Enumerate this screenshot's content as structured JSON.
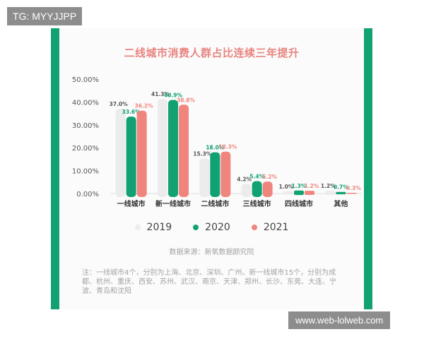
{
  "watermark_top": "TG: MYYJJPP",
  "watermark_bottom": "www.web-lolweb.com",
  "source": "数据来源：新氧数据颜究院",
  "note": "注：一线城市4个，分别为上海、北京、深圳、广州。新一线城市15个，分别为成都、杭州、重庆、西安、苏州、武汉、南京、天津、郑州、长沙、东莞、大连、宁波、青岛和沈阳",
  "colors": {
    "accent": "#11a173",
    "title": "#e8847f"
  },
  "chart_data": {
    "type": "bar",
    "title": "二线城市消费人群占比连续三年提升",
    "categories": [
      "一线城市",
      "新一线城市",
      "二线城市",
      "三线城市",
      "四线城市",
      "其他"
    ],
    "series": [
      {
        "name": "2019",
        "color": "#ececec",
        "label_color": "#555555",
        "values": [
          37.0,
          41.3,
          15.3,
          4.2,
          1.0,
          1.2
        ],
        "labels": [
          "37.0%",
          "41.3%",
          "15.3%",
          "4.2%",
          "1.0%",
          "1.2%"
        ]
      },
      {
        "name": "2020",
        "color": "#11a173",
        "label_color": "#11a173",
        "values": [
          33.6,
          40.9,
          18.0,
          5.4,
          1.3,
          0.7
        ],
        "labels": [
          "33.6%",
          "40.9%",
          "18.0%",
          "5.4%",
          "1.3%",
          "0.7%"
        ]
      },
      {
        "name": "2021",
        "color": "#f0857d",
        "label_color": "#f0857d",
        "values": [
          36.2,
          38.8,
          18.3,
          5.2,
          1.2,
          0.3
        ],
        "labels": [
          "36.2%",
          "38.8%",
          "18.3%",
          "5.2%",
          "1.2%",
          "0.3%"
        ]
      }
    ],
    "yticks": [
      "0.00%",
      "10.00%",
      "20.00%",
      "30.00%",
      "40.00%",
      "50.00%"
    ],
    "ylim": [
      0,
      50
    ],
    "grid": false,
    "legend": "bottom"
  }
}
